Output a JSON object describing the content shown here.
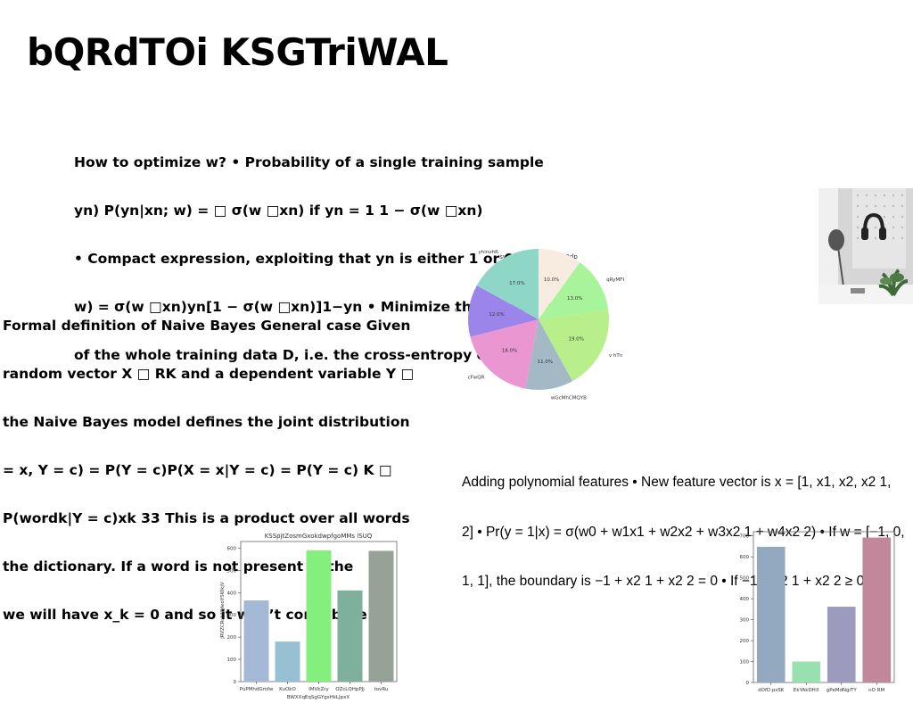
{
  "slide": {
    "title": "bQRdTOi KSGTriWAL",
    "text_block_1": {
      "lines": [
        "How to optimize w? • Probability of a single training sample",
        "yn) P(yn|xn; w) = □ σ(w □xn) if yn = 1 1 − σ(w □xn)",
        "• Compact expression, exploiting that yn is either 1 or 0",
        "w) = σ(w □xn)yn[1 − σ(w □xn)]1−yn • Minimize the negative",
        "of the whole training data D, i.e. the cross-entropy error"
      ]
    },
    "text_block_2": {
      "lines": [
        "Formal definition of Naive Bayes General case Given",
        "random vector X □ RK and a dependent variable Y □",
        "the Naive Bayes model defines the joint distribution",
        "= x, Y = c) = P(Y = c)P(X = x|Y = c) = P(Y = c) K □",
        "P(wordk|Y = c)xk 33 This is a product over all words",
        "the dictionary. If a word is not present in the",
        "we will have x_k = 0 and so it won’t contribute"
      ]
    },
    "text_block_3": {
      "lines": [
        "Adding polynomial features • New feature vector is x = [1, x1, x2, x2 1,",
        "2] • Pr(y = 1|x) = σ(w0 + w1x1 + w2x2 + w3x2 1 + w4x2 2) • If w = [−1, 0,",
        "1, 1], the boundary is −1 + x2 1 + x2 2 = 0 • If −1 + x2 1 + x2 2 ≥ 0"
      ]
    },
    "photo": {
      "icon": "room-photo-icon"
    }
  },
  "chart_data": [
    {
      "type": "pie",
      "title": "swDCpgwCCfRvdjpmQdp",
      "labels": [
        "LbPINA",
        "qRyMFPWqek",
        "v hTn",
        "wGcMhCMQYB",
        "cFwQR",
        "UmnPXGtqc",
        "yhinohR"
      ],
      "values": [
        10.0,
        13.0,
        19.0,
        11.0,
        18.0,
        12.0,
        17.0
      ],
      "value_labels": [
        "10.0%",
        "13.0%",
        "19.0%",
        "11.0%",
        "18.0%",
        "12.0%",
        "17.0%"
      ],
      "colors": [
        "#f8ebe0",
        "#a8f49a",
        "#b8ef8a",
        "#a3b9c6",
        "#ea96d0",
        "#9c85ea",
        "#8dd6c8"
      ]
    },
    {
      "type": "bar",
      "title": "KSSpjtZosmGxokdwpfgoMMs lSUQ",
      "xlabel": "BWXXqEqSgGYgsHkLJpxX",
      "ylabel": "jRVZCRuhMHeoYSWkjV",
      "categories": [
        "PuPMhdGmfw",
        "KuOkO",
        "lMVkZry",
        "OZcLQHpPJj",
        "tovRu"
      ],
      "values": [
        365,
        180,
        590,
        410,
        588
      ],
      "ylim": [
        0,
        630
      ],
      "yticks": [
        "0",
        "100",
        "200",
        "300",
        "400",
        "500",
        "600"
      ],
      "colors": [
        "#a4b9d6",
        "#97c0d2",
        "#84ef7c",
        "#7fb09e",
        "#96a197"
      ]
    },
    {
      "type": "bar",
      "title": "",
      "xlabel": "",
      "ylabel": "",
      "categories": [
        "dOfD psSK",
        "EkYAkDHX",
        "gPeMdNgiTY",
        "nO RM"
      ],
      "values": [
        648,
        100,
        362,
        692
      ],
      "ylim": [
        0,
        720
      ],
      "yticks": [
        "0",
        "100",
        "200",
        "300",
        "400",
        "500",
        "600",
        "700"
      ],
      "colors": [
        "#93a9bf",
        "#98e0b0",
        "#9c9bbd",
        "#c3879c"
      ]
    }
  ]
}
